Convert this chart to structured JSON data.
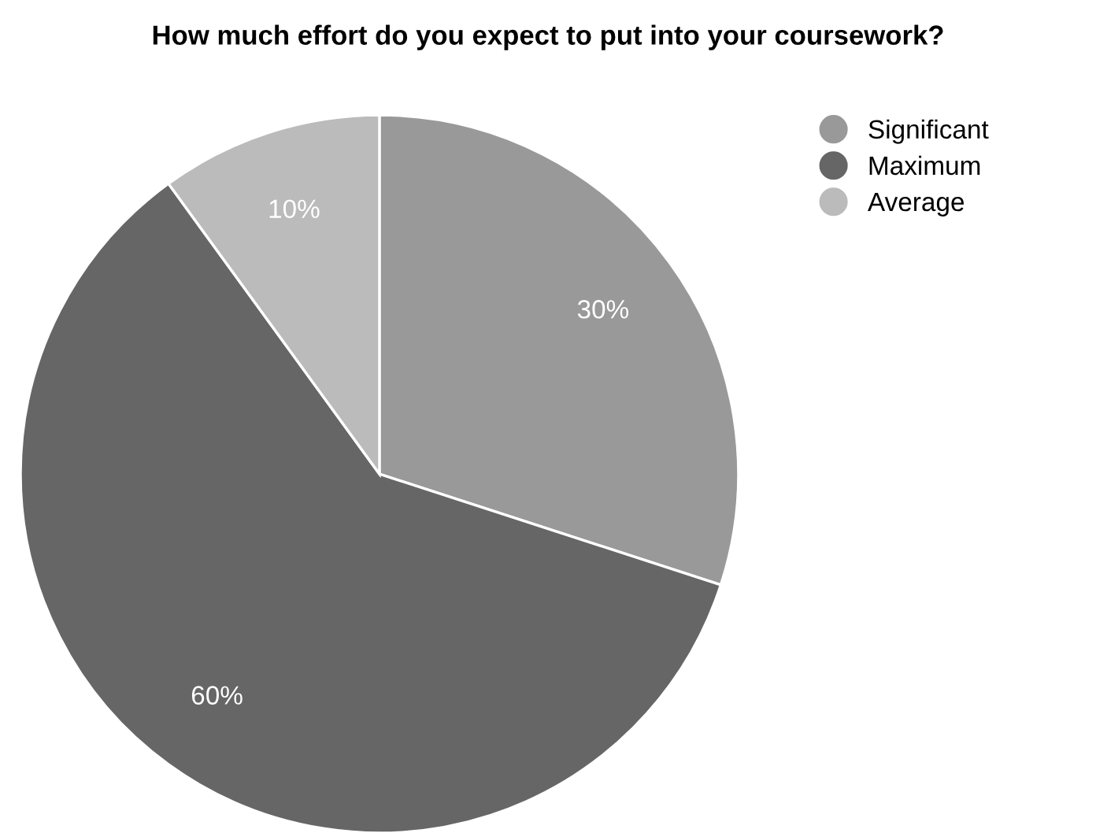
{
  "chart_data": {
    "type": "pie",
    "title": "How much effort do you expect to put into your coursework?",
    "categories": [
      "Significant",
      "Maximum",
      "Average"
    ],
    "values": [
      30,
      60,
      10
    ],
    "colors": [
      "#999999",
      "#666666",
      "#bbbbbb"
    ],
    "value_labels": [
      "30%",
      "60%",
      "10%"
    ],
    "legend": "top right"
  }
}
